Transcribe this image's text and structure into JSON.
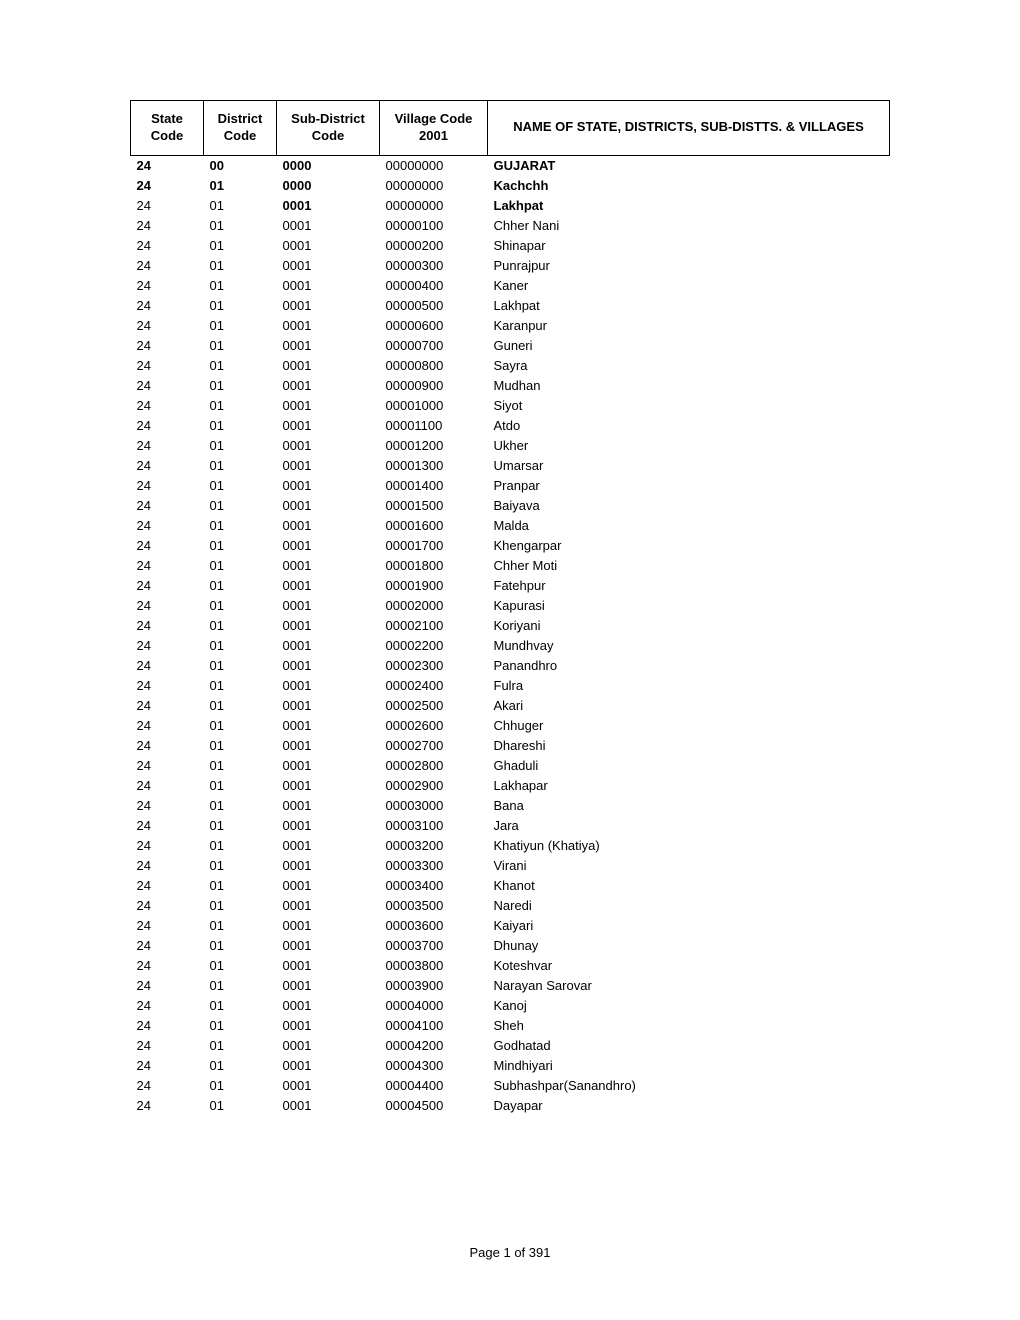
{
  "headers": {
    "state": "State Code",
    "district": "District Code",
    "subdistrict": "Sub-District Code",
    "village": "Village Code 2001",
    "name": "NAME OF STATE, DISTRICTS, SUB-DISTTS. & VILLAGES"
  },
  "rows": [
    {
      "state": "24",
      "district": "00",
      "subdistrict": "0000",
      "village": "00000000",
      "name": "GUJARAT",
      "bold": [
        0,
        1,
        2,
        4
      ]
    },
    {
      "state": "24",
      "district": "01",
      "subdistrict": "0000",
      "village": "00000000",
      "name": "Kachchh",
      "bold": [
        0,
        1,
        2,
        4
      ]
    },
    {
      "state": "24",
      "district": "01",
      "subdistrict": "0001",
      "village": "00000000",
      "name": "Lakhpat",
      "bold": [
        2,
        4
      ]
    },
    {
      "state": "24",
      "district": "01",
      "subdistrict": "0001",
      "village": "00000100",
      "name": "Chher Nani",
      "bold": []
    },
    {
      "state": "24",
      "district": "01",
      "subdistrict": "0001",
      "village": "00000200",
      "name": "Shinapar",
      "bold": []
    },
    {
      "state": "24",
      "district": "01",
      "subdistrict": "0001",
      "village": "00000300",
      "name": "Punrajpur",
      "bold": []
    },
    {
      "state": "24",
      "district": "01",
      "subdistrict": "0001",
      "village": "00000400",
      "name": "Kaner",
      "bold": []
    },
    {
      "state": "24",
      "district": "01",
      "subdistrict": "0001",
      "village": "00000500",
      "name": "Lakhpat",
      "bold": []
    },
    {
      "state": "24",
      "district": "01",
      "subdistrict": "0001",
      "village": "00000600",
      "name": "Karanpur",
      "bold": []
    },
    {
      "state": "24",
      "district": "01",
      "subdistrict": "0001",
      "village": "00000700",
      "name": "Guneri",
      "bold": []
    },
    {
      "state": "24",
      "district": "01",
      "subdistrict": "0001",
      "village": "00000800",
      "name": "Sayra",
      "bold": []
    },
    {
      "state": "24",
      "district": "01",
      "subdistrict": "0001",
      "village": "00000900",
      "name": "Mudhan",
      "bold": []
    },
    {
      "state": "24",
      "district": "01",
      "subdistrict": "0001",
      "village": "00001000",
      "name": "Siyot",
      "bold": []
    },
    {
      "state": "24",
      "district": "01",
      "subdistrict": "0001",
      "village": "00001100",
      "name": "Atdo",
      "bold": []
    },
    {
      "state": "24",
      "district": "01",
      "subdistrict": "0001",
      "village": "00001200",
      "name": "Ukher",
      "bold": []
    },
    {
      "state": "24",
      "district": "01",
      "subdistrict": "0001",
      "village": "00001300",
      "name": "Umarsar",
      "bold": []
    },
    {
      "state": "24",
      "district": "01",
      "subdistrict": "0001",
      "village": "00001400",
      "name": "Pranpar",
      "bold": []
    },
    {
      "state": "24",
      "district": "01",
      "subdistrict": "0001",
      "village": "00001500",
      "name": "Baiyava",
      "bold": []
    },
    {
      "state": "24",
      "district": "01",
      "subdistrict": "0001",
      "village": "00001600",
      "name": "Malda",
      "bold": []
    },
    {
      "state": "24",
      "district": "01",
      "subdistrict": "0001",
      "village": "00001700",
      "name": "Khengarpar",
      "bold": []
    },
    {
      "state": "24",
      "district": "01",
      "subdistrict": "0001",
      "village": "00001800",
      "name": "Chher Moti",
      "bold": []
    },
    {
      "state": "24",
      "district": "01",
      "subdistrict": "0001",
      "village": "00001900",
      "name": "Fatehpur",
      "bold": []
    },
    {
      "state": "24",
      "district": "01",
      "subdistrict": "0001",
      "village": "00002000",
      "name": "Kapurasi",
      "bold": []
    },
    {
      "state": "24",
      "district": "01",
      "subdistrict": "0001",
      "village": "00002100",
      "name": "Koriyani",
      "bold": []
    },
    {
      "state": "24",
      "district": "01",
      "subdistrict": "0001",
      "village": "00002200",
      "name": "Mundhvay",
      "bold": []
    },
    {
      "state": "24",
      "district": "01",
      "subdistrict": "0001",
      "village": "00002300",
      "name": "Panandhro",
      "bold": []
    },
    {
      "state": "24",
      "district": "01",
      "subdistrict": "0001",
      "village": "00002400",
      "name": "Fulra",
      "bold": []
    },
    {
      "state": "24",
      "district": "01",
      "subdistrict": "0001",
      "village": "00002500",
      "name": "Akari",
      "bold": []
    },
    {
      "state": "24",
      "district": "01",
      "subdistrict": "0001",
      "village": "00002600",
      "name": "Chhuger",
      "bold": []
    },
    {
      "state": "24",
      "district": "01",
      "subdistrict": "0001",
      "village": "00002700",
      "name": "Dhareshi",
      "bold": []
    },
    {
      "state": "24",
      "district": "01",
      "subdistrict": "0001",
      "village": "00002800",
      "name": "Ghaduli",
      "bold": []
    },
    {
      "state": "24",
      "district": "01",
      "subdistrict": "0001",
      "village": "00002900",
      "name": "Lakhapar",
      "bold": []
    },
    {
      "state": "24",
      "district": "01",
      "subdistrict": "0001",
      "village": "00003000",
      "name": "Bana",
      "bold": []
    },
    {
      "state": "24",
      "district": "01",
      "subdistrict": "0001",
      "village": "00003100",
      "name": "Jara",
      "bold": []
    },
    {
      "state": "24",
      "district": "01",
      "subdistrict": "0001",
      "village": "00003200",
      "name": "Khatiyun (Khatiya)",
      "bold": []
    },
    {
      "state": "24",
      "district": "01",
      "subdistrict": "0001",
      "village": "00003300",
      "name": "Virani",
      "bold": []
    },
    {
      "state": "24",
      "district": "01",
      "subdistrict": "0001",
      "village": "00003400",
      "name": "Khanot",
      "bold": []
    },
    {
      "state": "24",
      "district": "01",
      "subdistrict": "0001",
      "village": "00003500",
      "name": "Naredi",
      "bold": []
    },
    {
      "state": "24",
      "district": "01",
      "subdistrict": "0001",
      "village": "00003600",
      "name": "Kaiyari",
      "bold": []
    },
    {
      "state": "24",
      "district": "01",
      "subdistrict": "0001",
      "village": "00003700",
      "name": "Dhunay",
      "bold": []
    },
    {
      "state": "24",
      "district": "01",
      "subdistrict": "0001",
      "village": "00003800",
      "name": "Koteshvar",
      "bold": []
    },
    {
      "state": "24",
      "district": "01",
      "subdistrict": "0001",
      "village": "00003900",
      "name": "Narayan Sarovar",
      "bold": []
    },
    {
      "state": "24",
      "district": "01",
      "subdistrict": "0001",
      "village": "00004000",
      "name": "Kanoj",
      "bold": []
    },
    {
      "state": "24",
      "district": "01",
      "subdistrict": "0001",
      "village": "00004100",
      "name": "Sheh",
      "bold": []
    },
    {
      "state": "24",
      "district": "01",
      "subdistrict": "0001",
      "village": "00004200",
      "name": "Godhatad",
      "bold": []
    },
    {
      "state": "24",
      "district": "01",
      "subdistrict": "0001",
      "village": "00004300",
      "name": "Mindhiyari",
      "bold": []
    },
    {
      "state": "24",
      "district": "01",
      "subdistrict": "0001",
      "village": "00004400",
      "name": "Subhashpar(Sanandhro)",
      "bold": []
    },
    {
      "state": "24",
      "district": "01",
      "subdistrict": "0001",
      "village": "00004500",
      "name": "Dayapar",
      "bold": []
    }
  ],
  "footer": "Page 1 of 391"
}
